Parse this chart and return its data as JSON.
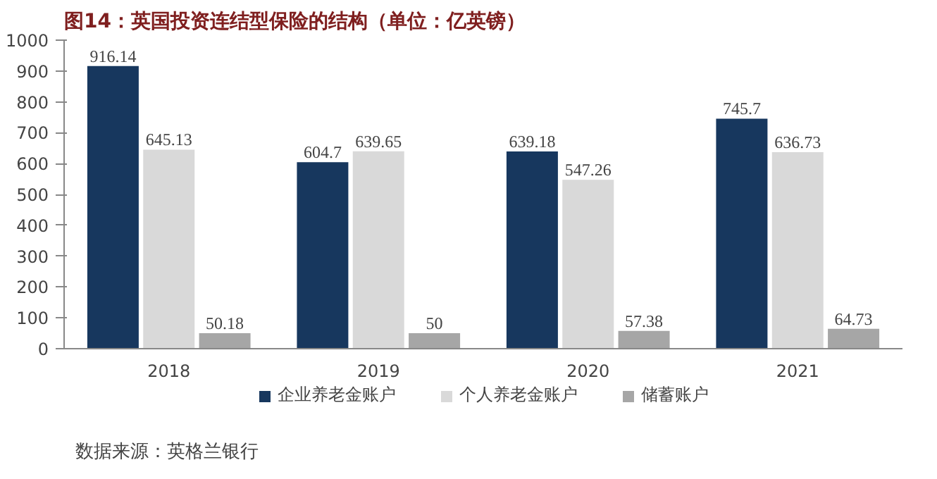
{
  "chart_data": {
    "type": "bar",
    "title": "图14：英国投资连结型保险的结构（单位：亿英镑）",
    "categories": [
      "2018",
      "2019",
      "2020",
      "2021"
    ],
    "series": [
      {
        "name": "企业养老金账户",
        "color": "#17375e",
        "values": [
          916.14,
          604.7,
          639.18,
          745.7
        ]
      },
      {
        "name": "个人养老金账户",
        "color": "#d9d9d9",
        "values": [
          645.13,
          639.65,
          547.26,
          636.73
        ]
      },
      {
        "name": "储蓄账户",
        "color": "#a6a6a6",
        "values": [
          50.18,
          50,
          57.38,
          64.73
        ]
      }
    ],
    "ylim": [
      0,
      1000
    ],
    "yticks": [
      0,
      100,
      200,
      300,
      400,
      500,
      600,
      700,
      800,
      900,
      1000
    ],
    "grid": false,
    "legend": "bottom",
    "data_labels": true,
    "annotations": [
      "数据来源：英格兰银行"
    ]
  }
}
